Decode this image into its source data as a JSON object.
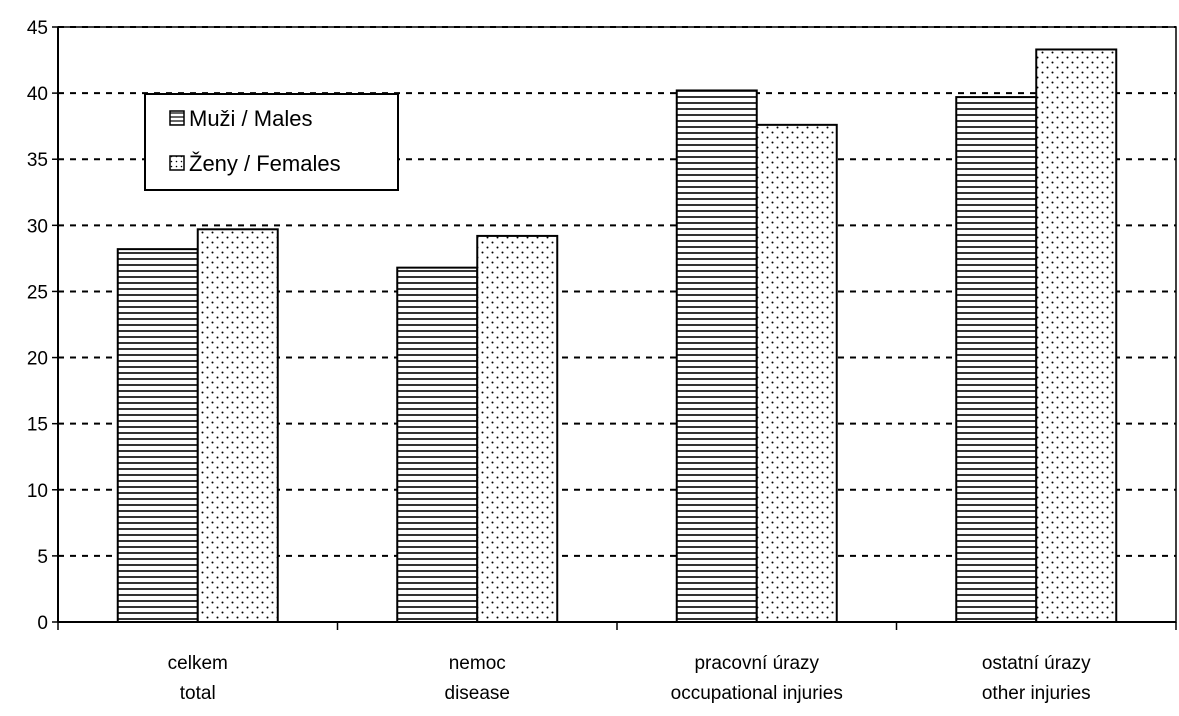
{
  "chart_data": {
    "type": "bar",
    "categories": [
      [
        "celkem",
        "total"
      ],
      [
        "nemoc",
        "disease"
      ],
      [
        "pracovní úrazy",
        "occupational injuries"
      ],
      [
        "ostatní úrazy",
        "other injuries"
      ]
    ],
    "series": [
      {
        "name": "Muži / Males",
        "pattern": "horizontal-lines",
        "values": [
          28.2,
          26.8,
          40.2,
          39.7
        ]
      },
      {
        "name": "Ženy / Females",
        "pattern": "dots",
        "values": [
          29.7,
          29.2,
          37.6,
          43.3
        ]
      }
    ],
    "ylim": [
      0,
      45
    ],
    "yticks": [
      0,
      5,
      10,
      15,
      20,
      25,
      30,
      35,
      40,
      45
    ],
    "grid": "dashed horizontal",
    "legend_position": "top-left",
    "title": "",
    "xlabel": "",
    "ylabel": "",
    "colors": {
      "bar_fill": "#ffffff",
      "pattern": "#000000",
      "grid": "#000000"
    }
  }
}
